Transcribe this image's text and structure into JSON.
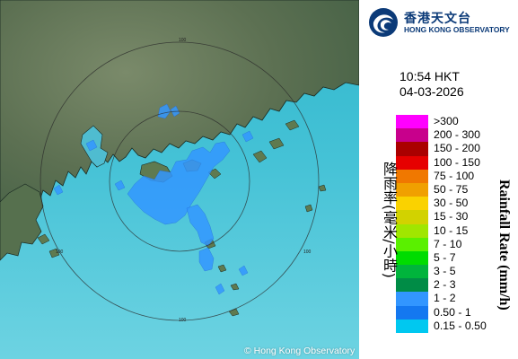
{
  "header": {
    "org_name_zh": "香港天文台",
    "org_name_en": "HONG KONG OBSERVATORY"
  },
  "timestamp": {
    "time": "10:54 HKT",
    "date": "04-03-2026"
  },
  "legend": {
    "title_zh": "降雨率(毫米/小時)",
    "title_en": "Rainfall Rate (mm/h)",
    "items": [
      {
        "label": ">300",
        "color": "#ff00ff"
      },
      {
        "label": "200 - 300",
        "color": "#c8008c"
      },
      {
        "label": "150 - 200",
        "color": "#aa0000"
      },
      {
        "label": "100 - 150",
        "color": "#e60000"
      },
      {
        "label": "75 - 100",
        "color": "#f07800"
      },
      {
        "label": "50 - 75",
        "color": "#f0a000"
      },
      {
        "label": "30 - 50",
        "color": "#fad200"
      },
      {
        "label": "15 - 30",
        "color": "#d2d200"
      },
      {
        "label": "10 - 15",
        "color": "#a0e600"
      },
      {
        "label": "7 - 10",
        "color": "#5af000"
      },
      {
        "label": "5 - 7",
        "color": "#00dc00"
      },
      {
        "label": "3 - 5",
        "color": "#00b43c"
      },
      {
        "label": "2 - 3",
        "color": "#008c46"
      },
      {
        "label": "1 - 2",
        "color": "#3296ff"
      },
      {
        "label": "0.50 - 1",
        "color": "#1478f0"
      },
      {
        "label": "0.15 - 0.50",
        "color": "#00c8f0"
      }
    ]
  },
  "map": {
    "range_ring_labels": [
      "100",
      "100",
      "100",
      "100"
    ],
    "land_color": "#5f7554",
    "sea_color": "#56c4d8",
    "rain_echo_color": "#3296ff",
    "copyright": "© Hong Kong Observatory"
  }
}
